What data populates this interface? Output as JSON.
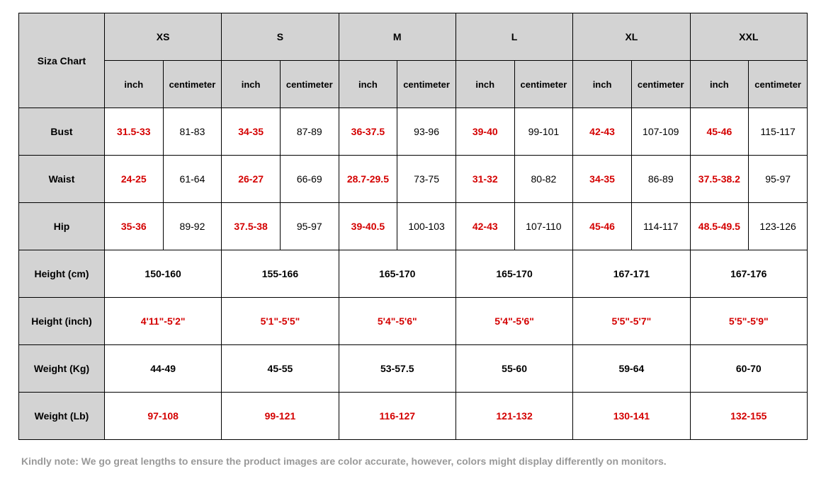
{
  "table": {
    "corner_label": "Siza Chart",
    "sizes": [
      "XS",
      "S",
      "M",
      "L",
      "XL",
      "XXL"
    ],
    "unit_labels": {
      "inch": "inch",
      "cm": "centimeter"
    },
    "header_bg": "#d3d3d3",
    "border_color": "#000000",
    "red_color": "#d40000",
    "text_color": "#000000",
    "font_family": "Arial",
    "font_size_body": 14,
    "font_size_sub": 13,
    "split_rows": [
      {
        "label": "Bust",
        "cells": [
          {
            "inch": "31.5-33",
            "cm": "81-83"
          },
          {
            "inch": "34-35",
            "cm": "87-89"
          },
          {
            "inch": "36-37.5",
            "cm": "93-96"
          },
          {
            "inch": "39-40",
            "cm": "99-101"
          },
          {
            "inch": "42-43",
            "cm": "107-109"
          },
          {
            "inch": "45-46",
            "cm": "115-117"
          }
        ]
      },
      {
        "label": "Waist",
        "cells": [
          {
            "inch": "24-25",
            "cm": "61-64"
          },
          {
            "inch": "26-27",
            "cm": "66-69"
          },
          {
            "inch": "28.7-29.5",
            "cm": "73-75"
          },
          {
            "inch": "31-32",
            "cm": "80-82"
          },
          {
            "inch": "34-35",
            "cm": "86-89"
          },
          {
            "inch": "37.5-38.2",
            "cm": "95-97"
          }
        ]
      },
      {
        "label": "Hip",
        "cells": [
          {
            "inch": "35-36",
            "cm": "89-92"
          },
          {
            "inch": "37.5-38",
            "cm": "95-97"
          },
          {
            "inch": "39-40.5",
            "cm": "100-103"
          },
          {
            "inch": "42-43",
            "cm": "107-110"
          },
          {
            "inch": "45-46",
            "cm": "114-117"
          },
          {
            "inch": "48.5-49.5",
            "cm": "123-126"
          }
        ]
      }
    ],
    "merged_rows": [
      {
        "label": "Height (cm)",
        "color": "black",
        "values": [
          "150-160",
          "155-166",
          "165-170",
          "165-170",
          "167-171",
          "167-176"
        ]
      },
      {
        "label": "Height (inch)",
        "color": "red",
        "values": [
          "4'11\"-5'2\"",
          "5'1\"-5'5\"",
          "5'4\"-5'6\"",
          "5'4\"-5'6\"",
          "5'5\"-5'7\"",
          "5'5\"-5'9\""
        ]
      },
      {
        "label": "Weight (Kg)",
        "color": "black",
        "values": [
          "44-49",
          "45-55",
          "53-57.5",
          "55-60",
          "59-64",
          "60-70"
        ]
      },
      {
        "label": "Weight (Lb)",
        "color": "red",
        "values": [
          "97-108",
          "99-121",
          "116-127",
          "121-132",
          "130-141",
          "132-155"
        ]
      }
    ]
  },
  "note": "Kindly note: We go great lengths to ensure the product images are color accurate, however, colors might display differently on monitors.",
  "note_color": "#999999"
}
